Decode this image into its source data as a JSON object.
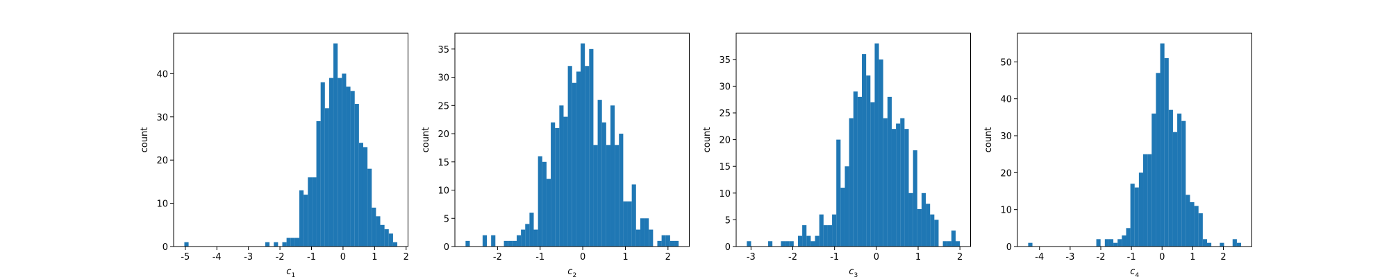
{
  "chart_data": [
    {
      "type": "histogram",
      "color": "#1f77b4",
      "xlabel": [
        "c",
        "1"
      ],
      "ylabel": "count",
      "bins": [
        -5.03,
        -4.895,
        -4.76,
        -4.625,
        -4.49,
        -4.355,
        -4.22,
        -4.085,
        -3.95,
        -3.815,
        -3.68,
        -3.545,
        -3.41,
        -3.275,
        -3.14,
        -3.005,
        -2.87,
        -2.735,
        -2.6,
        -2.465,
        -2.33,
        -2.195,
        -2.06,
        -1.925,
        -1.79,
        -1.655,
        -1.52,
        -1.385,
        -1.25,
        -1.115,
        -0.98,
        -0.845,
        -0.71,
        -0.575,
        -0.44,
        -0.305,
        -0.17,
        -0.035,
        0.1,
        0.235,
        0.37,
        0.505,
        0.64,
        0.775,
        0.91,
        1.045,
        1.18,
        1.315,
        1.45,
        1.585,
        1.72
      ],
      "values": [
        1,
        0,
        0,
        0,
        0,
        0,
        0,
        0,
        0,
        0,
        0,
        0,
        0,
        0,
        0,
        0,
        0,
        0,
        0,
        1,
        0,
        1,
        0,
        1,
        2,
        2,
        2,
        13,
        12,
        16,
        16,
        29,
        38,
        32,
        39,
        47,
        39,
        40,
        37,
        36,
        33,
        24,
        23,
        18,
        9,
        7,
        5,
        4,
        3,
        1
      ],
      "xlim": [
        -5.37,
        2.06
      ],
      "xticks": [
        -5,
        -4,
        -3,
        -2,
        -1,
        0,
        1,
        2
      ],
      "ylim": [
        0,
        49.35
      ],
      "yticks": [
        0,
        10,
        20,
        30,
        40
      ]
    },
    {
      "type": "histogram",
      "color": "#1f77b4",
      "xlabel": [
        "c",
        "2"
      ],
      "ylabel": "count",
      "bins": [
        -2.75,
        -2.65,
        -2.55,
        -2.45,
        -2.35,
        -2.25,
        -2.15,
        -2.05,
        -1.95,
        -1.85,
        -1.75,
        -1.65,
        -1.55,
        -1.45,
        -1.35,
        -1.25,
        -1.15,
        -1.05,
        -0.95,
        -0.85,
        -0.75,
        -0.65,
        -0.55,
        -0.45,
        -0.35,
        -0.25,
        -0.15,
        -0.05,
        0.05,
        0.15,
        0.25,
        0.35,
        0.45,
        0.55,
        0.65,
        0.75,
        0.85,
        0.95,
        1.05,
        1.15,
        1.25,
        1.35,
        1.45,
        1.55,
        1.65,
        1.75,
        1.85,
        1.95,
        2.05,
        2.15,
        2.25
      ],
      "values": [
        1,
        0,
        0,
        0,
        2,
        0,
        2,
        0,
        0,
        1,
        1,
        1,
        2,
        3,
        4,
        6,
        3,
        16,
        15,
        12,
        22,
        21,
        25,
        23,
        32,
        29,
        31,
        36,
        32,
        35,
        18,
        26,
        22,
        18,
        25,
        18,
        20,
        8,
        8,
        11,
        3,
        5,
        5,
        3,
        0,
        1,
        2,
        2,
        1,
        1
      ],
      "xlim": [
        -3.0,
        2.5
      ],
      "xticks": [
        -2,
        -1,
        0,
        1,
        2
      ],
      "ylim": [
        0,
        37.8
      ],
      "yticks": [
        0,
        5,
        10,
        15,
        20,
        25,
        30,
        35
      ]
    },
    {
      "type": "histogram",
      "color": "#1f77b4",
      "xlabel": [
        "c",
        "3"
      ],
      "ylabel": "count",
      "bins": [
        -3.1,
        -2.998,
        -2.896,
        -2.794,
        -2.692,
        -2.59,
        -2.488,
        -2.386,
        -2.284,
        -2.182,
        -2.08,
        -1.978,
        -1.876,
        -1.774,
        -1.672,
        -1.57,
        -1.468,
        -1.366,
        -1.264,
        -1.162,
        -1.06,
        -0.958,
        -0.856,
        -0.754,
        -0.652,
        -0.55,
        -0.448,
        -0.346,
        -0.244,
        -0.142,
        -0.04,
        0.062,
        0.164,
        0.266,
        0.368,
        0.47,
        0.572,
        0.674,
        0.776,
        0.878,
        0.98,
        1.082,
        1.184,
        1.286,
        1.388,
        1.49,
        1.592,
        1.694,
        1.796,
        1.898,
        2.0
      ],
      "values": [
        1,
        0,
        0,
        0,
        0,
        1,
        0,
        0,
        1,
        1,
        1,
        0,
        2,
        4,
        2,
        1,
        2,
        6,
        4,
        4,
        6,
        20,
        11,
        15,
        24,
        29,
        28,
        36,
        32,
        27,
        38,
        35,
        24,
        28,
        22,
        23,
        24,
        22,
        10,
        18,
        7,
        10,
        8,
        6,
        5,
        0,
        1,
        1,
        3,
        1
      ],
      "xlim": [
        -3.355,
        2.255
      ],
      "xticks": [
        -3,
        -2,
        -1,
        0,
        1,
        2
      ],
      "ylim": [
        0,
        39.9
      ],
      "yticks": [
        0,
        5,
        10,
        15,
        20,
        25,
        30,
        35
      ]
    },
    {
      "type": "histogram",
      "color": "#1f77b4",
      "xlabel": [
        "c",
        "4"
      ],
      "ylabel": "count",
      "bins": [
        -4.37,
        -4.231,
        -4.092,
        -3.953,
        -3.814,
        -3.675,
        -3.536,
        -3.397,
        -3.258,
        -3.119,
        -2.98,
        -2.841,
        -2.702,
        -2.563,
        -2.424,
        -2.285,
        -2.146,
        -2.007,
        -1.868,
        -1.729,
        -1.59,
        -1.451,
        -1.312,
        -1.173,
        -1.034,
        -0.895,
        -0.756,
        -0.617,
        -0.478,
        -0.339,
        -0.2,
        -0.061,
        0.078,
        0.217,
        0.356,
        0.495,
        0.634,
        0.773,
        0.912,
        1.051,
        1.19,
        1.329,
        1.468,
        1.607,
        1.746,
        1.885,
        2.024,
        2.163,
        2.302,
        2.441,
        2.58
      ],
      "values": [
        1,
        0,
        0,
        0,
        0,
        0,
        0,
        0,
        0,
        0,
        0,
        0,
        0,
        0,
        0,
        0,
        2,
        0,
        2,
        2,
        1,
        2,
        3,
        5,
        17,
        16,
        20,
        25,
        25,
        36,
        47,
        55,
        51,
        37,
        31,
        36,
        34,
        14,
        12,
        11,
        9,
        2,
        1,
        0,
        0,
        1,
        0,
        0,
        2,
        1
      ],
      "xlim": [
        -4.72,
        2.93
      ],
      "xticks": [
        -4,
        -3,
        -2,
        -1,
        0,
        1,
        2
      ],
      "ylim": [
        0,
        57.75
      ],
      "yticks": [
        0,
        10,
        20,
        30,
        40,
        50
      ]
    }
  ]
}
